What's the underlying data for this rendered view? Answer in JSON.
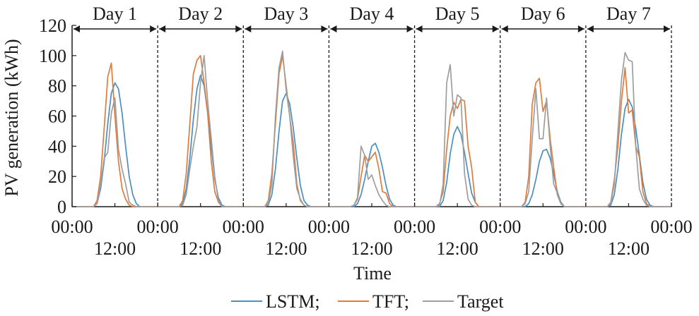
{
  "chart_data": {
    "type": "line",
    "xlabel": "Time",
    "ylabel": "PV generation (kWh)",
    "ylim": [
      0,
      120
    ],
    "yticks": [
      0,
      20,
      40,
      60,
      80,
      100,
      120
    ],
    "days": [
      "Day 1",
      "Day 2",
      "Day 3",
      "Day 4",
      "Day 5",
      "Day 6",
      "Day 7"
    ],
    "xticks_upper": [
      "00:00",
      "00:00",
      "00:00",
      "00:00",
      "00:00",
      "00:00",
      "00:00",
      "00:00"
    ],
    "xticks_lower": [
      "12:00",
      "12:00",
      "12:00",
      "12:00",
      "12:00",
      "12:00",
      "12:00"
    ],
    "legend": [
      {
        "label": "LSTM;",
        "color": "#4a8ec2"
      },
      {
        "label": "TFT;",
        "color": "#e07b3c"
      },
      {
        "label": "Target",
        "color": "#9e9e9e"
      }
    ],
    "hours": [
      0,
      1,
      2,
      3,
      4,
      5,
      6,
      7,
      8,
      9,
      10,
      11,
      12,
      13,
      14,
      15,
      16,
      17,
      18,
      19,
      20,
      21,
      22,
      23,
      24
    ],
    "series": [
      {
        "name": "LSTM;",
        "color": "#4a8ec2",
        "days": [
          [
            0,
            0,
            0,
            0,
            0,
            0,
            0,
            2,
            12,
            30,
            55,
            75,
            82,
            78,
            62,
            40,
            20,
            8,
            2,
            0,
            0,
            0,
            0,
            0,
            0
          ],
          [
            0,
            0,
            0,
            0,
            0,
            0,
            0,
            2,
            12,
            32,
            58,
            78,
            87,
            80,
            62,
            40,
            18,
            6,
            1,
            0,
            0,
            0,
            0,
            0,
            0
          ],
          [
            0,
            0,
            0,
            0,
            0,
            0,
            0,
            1,
            8,
            25,
            50,
            70,
            75,
            68,
            52,
            32,
            14,
            4,
            1,
            0,
            0,
            0,
            0,
            0,
            0
          ],
          [
            0,
            0,
            0,
            0,
            0,
            0,
            0,
            0,
            2,
            8,
            18,
            30,
            40,
            42,
            36,
            26,
            14,
            5,
            1,
            0,
            0,
            0,
            0,
            0,
            0
          ],
          [
            0,
            0,
            0,
            0,
            0,
            0,
            0,
            0,
            4,
            16,
            35,
            48,
            53,
            48,
            36,
            22,
            9,
            3,
            0,
            0,
            0,
            0,
            0,
            0,
            0
          ],
          [
            0,
            0,
            0,
            0,
            0,
            0,
            0,
            0,
            2,
            8,
            18,
            30,
            37,
            38,
            32,
            22,
            10,
            3,
            0,
            0,
            0,
            0,
            0,
            0,
            0
          ],
          [
            0,
            0,
            0,
            0,
            0,
            0,
            0,
            1,
            8,
            25,
            48,
            65,
            71,
            66,
            52,
            34,
            16,
            5,
            1,
            0,
            0,
            0,
            0,
            0,
            0
          ]
        ]
      },
      {
        "name": "TFT;",
        "color": "#e07b3c",
        "days": [
          [
            0,
            0,
            0,
            0,
            0,
            0,
            0,
            4,
            20,
            52,
            86,
            95,
            60,
            30,
            12,
            5,
            1,
            0,
            0,
            0,
            0,
            0,
            0,
            0,
            0
          ],
          [
            0,
            0,
            0,
            0,
            0,
            0,
            0,
            4,
            22,
            55,
            88,
            97,
            100,
            82,
            62,
            30,
            10,
            3,
            0,
            0,
            0,
            0,
            0,
            0,
            0
          ],
          [
            0,
            0,
            0,
            0,
            0,
            0,
            0,
            4,
            22,
            55,
            88,
            100,
            80,
            60,
            42,
            15,
            4,
            1,
            0,
            0,
            0,
            0,
            0,
            0,
            0
          ],
          [
            0,
            0,
            0,
            0,
            0,
            0,
            0,
            1,
            5,
            20,
            34,
            30,
            33,
            36,
            25,
            10,
            9,
            2,
            0,
            0,
            0,
            0,
            0,
            0,
            0
          ],
          [
            0,
            0,
            0,
            0,
            0,
            0,
            0,
            2,
            10,
            38,
            60,
            69,
            65,
            71,
            70,
            40,
            26,
            3,
            0,
            0,
            0,
            0,
            0,
            0,
            0
          ],
          [
            0,
            0,
            0,
            0,
            0,
            0,
            0,
            3,
            20,
            68,
            82,
            85,
            63,
            70,
            45,
            26,
            8,
            2,
            0,
            0,
            0,
            0,
            0,
            0,
            0
          ],
          [
            0,
            0,
            0,
            0,
            0,
            0,
            0,
            3,
            18,
            40,
            70,
            92,
            62,
            64,
            40,
            33,
            10,
            2,
            0,
            0,
            0,
            0,
            0,
            0,
            0
          ]
        ]
      },
      {
        "name": "Target",
        "color": "#9e9e9e",
        "days": [
          [
            0,
            0,
            0,
            0,
            0,
            0,
            0,
            2,
            15,
            32,
            36,
            62,
            72,
            38,
            25,
            15,
            3,
            1,
            0,
            0,
            0,
            0,
            0,
            0,
            0
          ],
          [
            0,
            0,
            0,
            0,
            0,
            0,
            0,
            1,
            8,
            25,
            40,
            53,
            82,
            100,
            70,
            45,
            20,
            4,
            0,
            0,
            0,
            0,
            0,
            0,
            0
          ],
          [
            0,
            0,
            0,
            0,
            0,
            0,
            0,
            2,
            15,
            60,
            92,
            103,
            77,
            60,
            33,
            12,
            5,
            1,
            0,
            0,
            0,
            0,
            0,
            0,
            0
          ],
          [
            0,
            0,
            0,
            0,
            0,
            0,
            0,
            1,
            6,
            40,
            34,
            18,
            21,
            14,
            8,
            4,
            1,
            0,
            0,
            0,
            0,
            0,
            0,
            0,
            0
          ],
          [
            0,
            0,
            0,
            0,
            0,
            0,
            0,
            1,
            15,
            82,
            94,
            60,
            74,
            72,
            22,
            5,
            1,
            0,
            0,
            0,
            0,
            0,
            0,
            0,
            0
          ],
          [
            0,
            0,
            0,
            0,
            0,
            0,
            0,
            2,
            10,
            45,
            78,
            45,
            45,
            72,
            40,
            15,
            9,
            2,
            0,
            0,
            0,
            0,
            0,
            0,
            0
          ],
          [
            0,
            0,
            0,
            0,
            0,
            0,
            0,
            2,
            15,
            50,
            84,
            102,
            97,
            96,
            40,
            12,
            5,
            1,
            0,
            0,
            0,
            0,
            0,
            0,
            0
          ]
        ]
      }
    ]
  }
}
